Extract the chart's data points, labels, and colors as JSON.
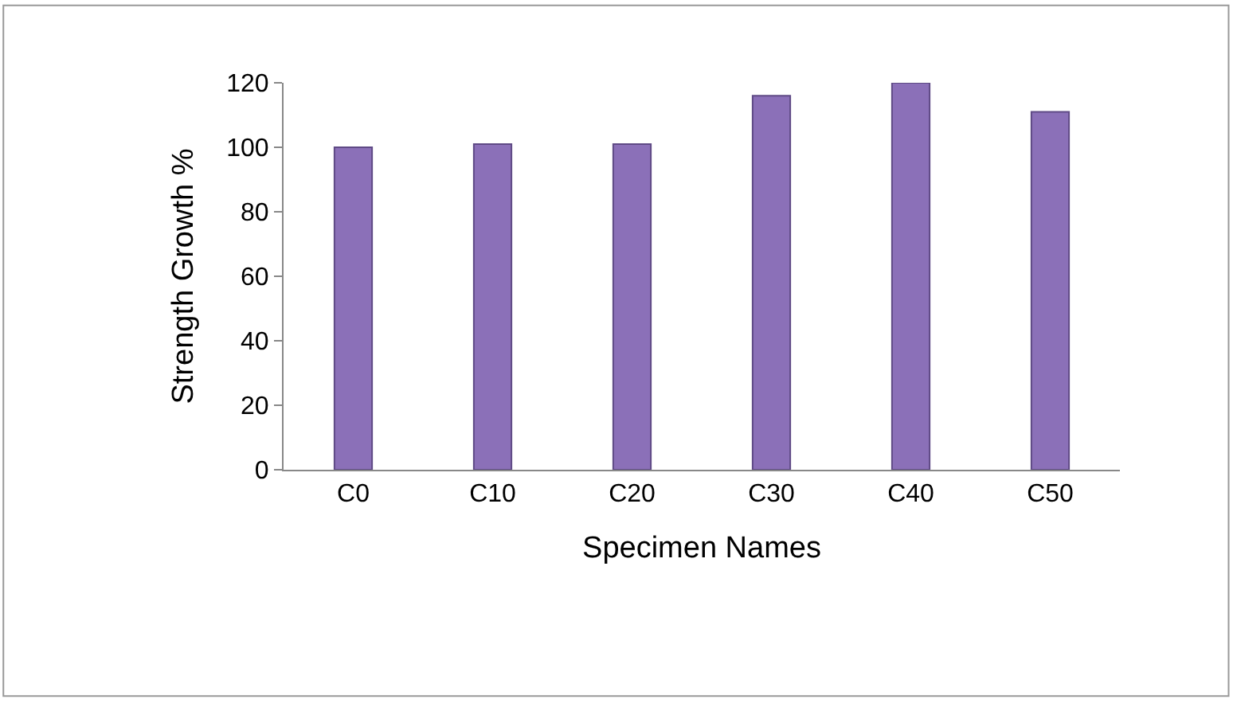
{
  "chart_data": {
    "type": "bar",
    "xlabel": "Specimen Names",
    "ylabel": "Strength Growth %",
    "categories": [
      "C0",
      "C10",
      "C20",
      "C30",
      "C40",
      "C50"
    ],
    "values": [
      100,
      101,
      101,
      116,
      120,
      111
    ],
    "color": "#8b70b8",
    "ylim": [
      0,
      120
    ],
    "yticks": [
      0,
      20,
      40,
      60,
      80,
      100,
      120
    ]
  }
}
